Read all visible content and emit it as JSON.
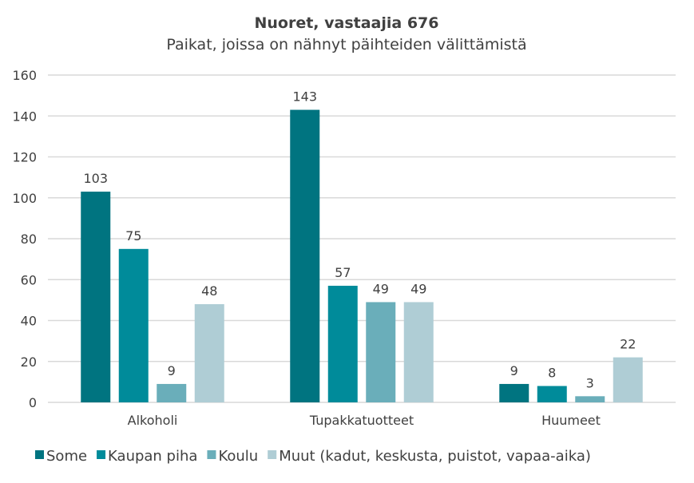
{
  "chart_data": {
    "type": "bar",
    "title": "Nuoret, vastaajia 676",
    "subtitle": "Paikat, joissa on nähnyt päihteiden välittämistä",
    "categories": [
      "Alkoholi",
      "Tupakkatuotteet",
      "Huumeet"
    ],
    "series": [
      {
        "name": "Some",
        "values": [
          103,
          143,
          9
        ],
        "color": "#007480"
      },
      {
        "name": "Kaupan piha",
        "values": [
          75,
          57,
          8
        ],
        "color": "#008b9a"
      },
      {
        "name": "Koulu",
        "values": [
          9,
          49,
          3
        ],
        "color": "#6aaeba"
      },
      {
        "name": "Muut (kadut, keskusta, puistot, vapaa-aika)",
        "values": [
          48,
          49,
          22
        ],
        "color": "#afcdd5"
      }
    ],
    "ylim": [
      0,
      160
    ],
    "yticks": [
      0,
      20,
      40,
      60,
      80,
      100,
      120,
      140,
      160
    ],
    "grid": true,
    "legend": "bottom",
    "xlabel": "",
    "ylabel": ""
  }
}
